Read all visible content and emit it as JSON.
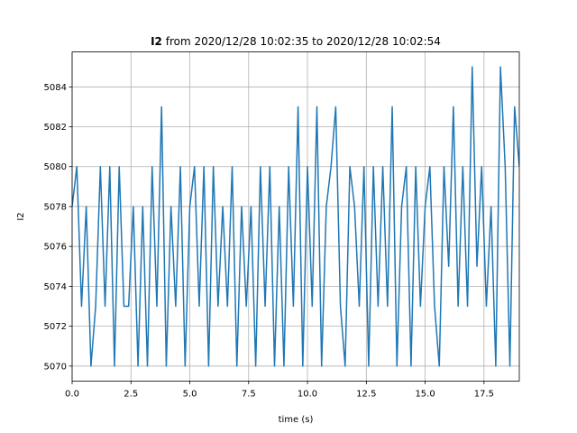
{
  "chart_data": {
    "type": "line",
    "title": {
      "name": "I2",
      "text": "from 2020/12/28 10:02:35 to 2020/12/28 10:02:54"
    },
    "x_label": "time (s)",
    "y_label": "I2",
    "x": [
      0,
      0.2,
      0.4,
      0.6,
      0.8,
      1,
      1.2,
      1.4,
      1.6,
      1.8,
      2,
      2.2,
      2.4,
      2.6,
      2.8,
      3,
      3.2,
      3.4,
      3.6,
      3.8,
      4,
      4.2,
      4.4,
      4.6,
      4.8,
      5,
      5.2,
      5.4,
      5.6,
      5.8,
      6,
      6.2,
      6.4,
      6.6,
      6.8,
      7,
      7.2,
      7.4,
      7.6,
      7.8,
      8,
      8.2,
      8.4,
      8.6,
      8.8,
      9,
      9.2,
      9.4,
      9.6,
      9.8,
      10,
      10.2,
      10.4,
      10.6,
      10.8,
      11,
      11.2,
      11.4,
      11.6,
      11.8,
      12,
      12.2,
      12.4,
      12.6,
      12.8,
      13,
      13.2,
      13.4,
      13.6,
      13.8,
      14,
      14.2,
      14.4,
      14.6,
      14.8,
      15,
      15.2,
      15.4,
      15.6,
      15.8,
      16,
      16.2,
      16.4,
      16.6,
      16.8,
      17,
      17.2,
      17.4,
      17.6,
      17.8,
      18,
      18.2,
      18.4,
      18.6,
      18.8,
      19
    ],
    "series": [
      {
        "name": "I2",
        "color": "#1f77b4",
        "values": [
          5078,
          5080,
          5073,
          5078,
          5070,
          5073,
          5080,
          5073,
          5080,
          5070,
          5080,
          5073,
          5073,
          5078,
          5070,
          5078,
          5070,
          5080,
          5073,
          5083,
          5070,
          5078,
          5073,
          5080,
          5070,
          5078,
          5080,
          5073,
          5080,
          5070,
          5080,
          5073,
          5078,
          5073,
          5080,
          5070,
          5078,
          5073,
          5078,
          5070,
          5080,
          5073,
          5080,
          5070,
          5078,
          5070,
          5080,
          5073,
          5083,
          5070,
          5080,
          5073,
          5083,
          5070,
          5078,
          5080,
          5083,
          5073,
          5070,
          5080,
          5078,
          5073,
          5080,
          5070,
          5080,
          5073,
          5080,
          5073,
          5083,
          5070,
          5078,
          5080,
          5070,
          5080,
          5073,
          5078,
          5080,
          5073,
          5070,
          5080,
          5075,
          5083,
          5073,
          5080,
          5073,
          5085,
          5075,
          5080,
          5073,
          5078,
          5070,
          5085,
          5080,
          5070,
          5083,
          5080
        ]
      }
    ],
    "xlim": [
      0,
      19
    ],
    "xticks": [
      {
        "value": 0,
        "label": "0.0"
      },
      2.5,
      {
        "value": 5,
        "label": "5.0"
      },
      7.5,
      {
        "value": 10,
        "label": "10.0"
      },
      12.5,
      {
        "value": 15,
        "label": "15.0"
      },
      17.5
    ],
    "ylim": [
      5069.25,
      5085.75
    ],
    "yticks": [
      5070,
      5072,
      5074,
      5076,
      5078,
      5080,
      5082,
      5084
    ],
    "grid": true
  }
}
